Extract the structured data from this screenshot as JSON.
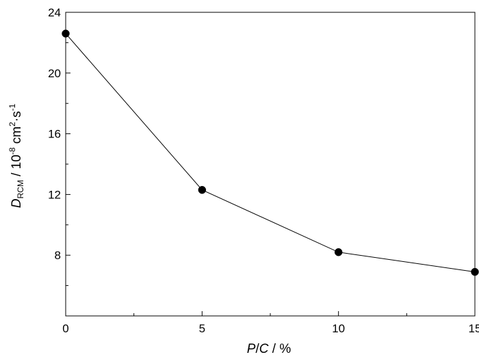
{
  "chart_data": {
    "type": "line",
    "title": "",
    "x": [
      0,
      5,
      10,
      15
    ],
    "series": [
      {
        "values": [
          22.6,
          12.3,
          8.2,
          6.9
        ]
      }
    ],
    "xlim": [
      0,
      15
    ],
    "ylim": [
      4,
      24
    ],
    "xticks": [
      0,
      5,
      10,
      15
    ],
    "xtick_labels": [
      "0",
      "5",
      "10",
      "15"
    ],
    "yticks": [
      8,
      12,
      16,
      20,
      24
    ],
    "ytick_labels": [
      "8",
      "12",
      "16",
      "20",
      "24"
    ],
    "xlabel": {
      "p": "P",
      "slash1": "/",
      "c": "C",
      "unit": " / %"
    },
    "ylabel": {
      "d": "D",
      "sub": "RCM",
      "pre": " / 10",
      "exp1": "-8",
      "mid": " cm",
      "exp2": "2",
      "dot": "·s",
      "exp3": "-1"
    },
    "grid": false,
    "legend": "none",
    "line_color": "#000000",
    "marker_color": "#000000"
  }
}
